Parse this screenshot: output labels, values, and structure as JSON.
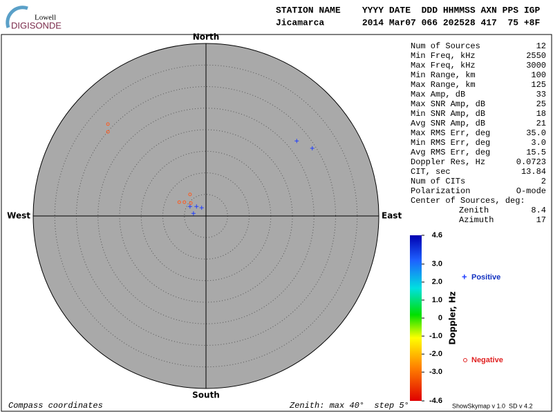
{
  "logo": {
    "top": "Lowell",
    "bottom": "DIGISONDE"
  },
  "header": {
    "labels": "STATION NAME    YYYY DATE  DDD HHMMSS AXN PPS IGP",
    "values": "Jicamarca       2014 Mar07 066 202528 417  75 +8F"
  },
  "chart_data": {
    "type": "skymap",
    "directions": {
      "north": "North",
      "south": "South",
      "east": "East",
      "west": "West"
    },
    "rlim": [
      0,
      40
    ],
    "rticks": [
      5,
      10,
      15,
      20,
      25,
      30,
      35
    ],
    "series": [
      {
        "name": "Positive",
        "color": "#1e3cff",
        "x": [
          21.0,
          24.6,
          -3.7,
          -2.2,
          -1.0,
          -2.9
        ],
        "values": [
          17.4,
          15.7,
          2.2,
          2.2,
          1.9,
          0.6
        ]
      },
      {
        "name": "Negative",
        "color": "#ff5a1e",
        "x": [
          -22.7,
          -22.7,
          -3.7,
          -6.2,
          -5.0,
          -3.5
        ],
        "values": [
          21.3,
          19.5,
          5.0,
          3.2,
          3.2,
          3.0
        ]
      }
    ],
    "colorbar": {
      "label": "Doppler, Hz",
      "lim": [
        -4.6,
        4.6
      ],
      "ticks": [
        4.6,
        {
          "value": 3,
          "label": "3.0"
        },
        {
          "value": 2,
          "label": "2.0"
        },
        {
          "value": 1,
          "label": "1.0"
        },
        0,
        {
          "value": -1,
          "label": "-1.0"
        },
        {
          "value": -2,
          "label": "-2.0"
        },
        {
          "value": -3,
          "label": "-3.0"
        },
        -4.6
      ]
    }
  },
  "stats": {
    "rows": [
      [
        "Num of Sources",
        "12"
      ],
      [
        "Min Freq, kHz",
        "2550"
      ],
      [
        "Max Freq, kHz",
        "3000"
      ],
      [
        "Min Range, km",
        "100"
      ],
      [
        "Max Range, km",
        "125"
      ],
      [
        "Max Amp, dB",
        "33"
      ],
      [
        "Max SNR Amp, dB",
        "25"
      ],
      [
        "Min SNR Amp, dB",
        "18"
      ],
      [
        "Avg SNR Amp, dB",
        "21"
      ],
      [
        "Max RMS Err, deg",
        "35.0"
      ],
      [
        "Min RMS Err, deg",
        "3.0"
      ],
      [
        "Avg RMS Err, deg",
        "15.5"
      ],
      [
        "Doppler Res, Hz",
        "0.0723"
      ],
      [
        "CIT, sec",
        "13.84"
      ],
      [
        "Num of CITs",
        "2"
      ],
      [
        "Polarization",
        "O-mode"
      ]
    ],
    "center_title": "Center of Sources, deg:",
    "center_rows": [
      [
        "Zenith",
        "8.4"
      ],
      [
        "Azimuth",
        "17"
      ]
    ]
  },
  "footer": {
    "left": "Compass coordinates",
    "middle": "Zenith: max 40°  step 5°",
    "right": "ShowSkymap v 1.0  SD v 4.2"
  }
}
